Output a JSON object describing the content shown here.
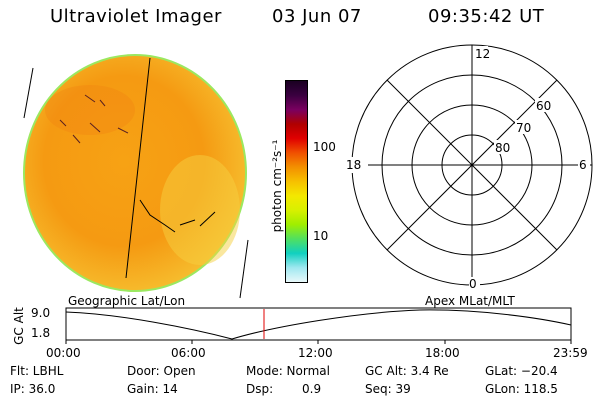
{
  "header": {
    "title": "Ultraviolet Imager",
    "date": "03 Jun 07",
    "time": "09:35:42 UT"
  },
  "colorbar": {
    "unit_label": "photon cm⁻²s⁻¹",
    "ticks": [
      "100",
      "10"
    ],
    "colors": [
      "#1a0022",
      "#3a0040",
      "#7a0060",
      "#b00000",
      "#e00000",
      "#f05000",
      "#f39000",
      "#f6c000",
      "#f4e800",
      "#d8f000",
      "#a0ee00",
      "#50e060",
      "#10d0c0",
      "#9fe8f0",
      "#e8f8fa"
    ]
  },
  "polar": {
    "mlt_labels": {
      "top": "12",
      "left": "18",
      "right": "6",
      "bottom": "0"
    },
    "lat_labels": [
      "60",
      "70",
      "80"
    ]
  },
  "timeline": {
    "left_label": "Geographic Lat/Lon",
    "right_label": "Apex MLat/MLT",
    "axis_label": "GC Alt",
    "y_ticks": [
      "9.0",
      "1.8"
    ],
    "x_ticks": [
      "00:00",
      "06:00",
      "12:00",
      "18:00",
      "23:59"
    ],
    "marker_color": "#e00000"
  },
  "footer": {
    "filter": "Flt: LBHL",
    "ip": "IP: 36.0",
    "door": "Door: Open",
    "gain": "Gain: 14",
    "mode": "Mode: Normal",
    "dsp_label": "Dsp:",
    "dsp_value": "0.9",
    "gc_alt": "GC Alt: 3.4 Re",
    "seq": "Seq: 39",
    "glat": "GLat: −20.4",
    "glon": "GLon: 118.5"
  }
}
